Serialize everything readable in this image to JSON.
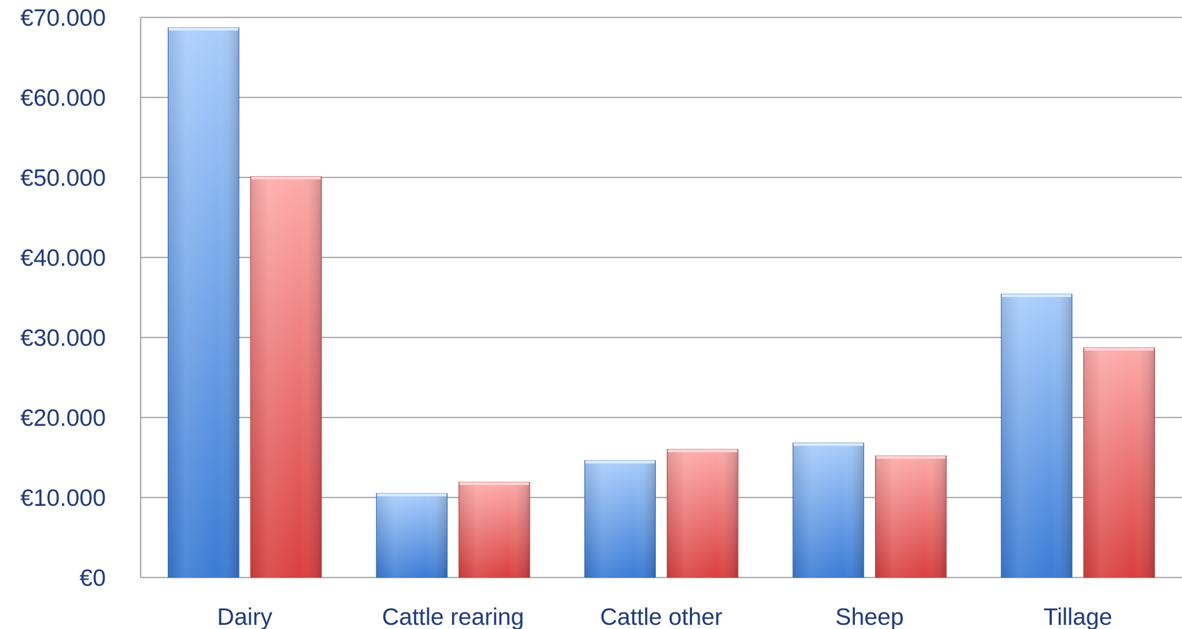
{
  "chart_data": {
    "type": "bar",
    "title": "",
    "xlabel": "",
    "ylabel": "",
    "categories": [
      "Dairy",
      "Cattle rearing",
      "Cattle other",
      "Sheep",
      "Tillage"
    ],
    "series": [
      {
        "values": [
          68700,
          10500,
          14600,
          16800,
          35400
        ],
        "color": "#5b8fdc"
      },
      {
        "values": [
          50100,
          11900,
          16000,
          15200,
          28700
        ],
        "color": "#e06060"
      }
    ],
    "ylim": [
      0,
      70000
    ],
    "y_ticks": [
      0,
      10000,
      20000,
      30000,
      40000,
      50000,
      60000,
      70000
    ],
    "y_tick_labels": [
      "€0",
      "€10.000",
      "€20.000",
      "€30.000",
      "€40.000",
      "€50.000",
      "€60.000",
      "€70.000"
    ],
    "grid": true,
    "legend": "none"
  }
}
